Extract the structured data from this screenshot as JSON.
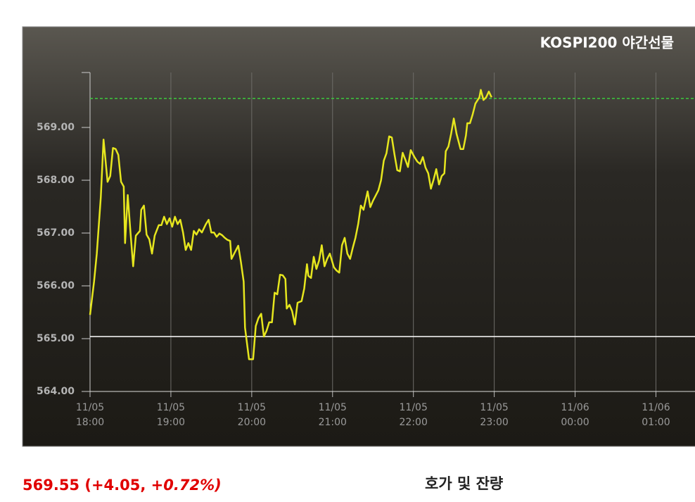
{
  "chart_data": {
    "type": "line",
    "title": "KOSPI200 야간선물",
    "x": [
      "11/05 18:00",
      "11/05 18:03",
      "11/05 18:05",
      "11/05 18:08",
      "11/05 18:10",
      "11/05 18:13",
      "11/05 18:15",
      "11/05 18:17",
      "11/05 18:19",
      "11/05 18:21",
      "11/05 18:23",
      "11/05 18:25",
      "11/05 18:26",
      "11/05 18:28",
      "11/05 18:30",
      "11/05 18:32",
      "11/05 18:34",
      "11/05 18:37",
      "11/05 18:38",
      "11/05 18:40",
      "11/05 18:42",
      "11/05 18:44",
      "11/05 18:46",
      "11/05 18:48",
      "11/05 18:51",
      "11/05 18:53",
      "11/05 18:55",
      "11/05 18:57",
      "11/05 18:59",
      "11/05 19:01",
      "11/05 19:03",
      "11/05 19:05",
      "11/05 19:07",
      "11/05 19:09",
      "11/05 19:11",
      "11/05 19:13",
      "11/05 19:15",
      "11/05 19:17",
      "11/05 19:19",
      "11/05 19:21",
      "11/05 19:23",
      "11/05 19:26",
      "11/05 19:28",
      "11/05 19:30",
      "11/05 19:32",
      "11/05 19:34",
      "11/05 19:36",
      "11/05 19:38",
      "11/05 19:40",
      "11/05 19:42",
      "11/05 19:44",
      "11/05 19:45",
      "11/05 19:47",
      "11/05 19:50",
      "11/05 19:52",
      "11/05 19:54",
      "11/05 19:55",
      "11/05 19:57",
      "11/05 19:58",
      "11/05 20:01",
      "11/05 20:03",
      "11/05 20:05",
      "11/05 20:07",
      "11/05 20:09",
      "11/05 20:11",
      "11/05 20:13",
      "11/05 20:15",
      "11/05 20:17",
      "11/05 20:19",
      "11/05 20:21",
      "11/05 20:23",
      "11/05 20:25",
      "11/05 20:26",
      "11/05 20:28",
      "11/05 20:30",
      "11/05 20:32",
      "11/05 20:34",
      "11/05 20:37",
      "11/05 20:39",
      "11/05 20:41",
      "11/05 20:42",
      "11/05 20:44",
      "11/05 20:46",
      "11/05 20:48",
      "11/05 20:50",
      "11/05 20:52",
      "11/05 20:54",
      "11/05 20:56",
      "11/05 20:58",
      "11/05 21:01",
      "11/05 21:03",
      "11/05 21:05",
      "11/05 21:07",
      "11/05 21:09",
      "11/05 21:11",
      "11/05 21:13",
      "11/05 21:15",
      "11/05 21:17",
      "11/05 21:19",
      "11/05 21:21",
      "11/05 21:23",
      "11/05 21:26",
      "11/05 21:28",
      "11/05 21:30",
      "11/05 21:32",
      "11/05 21:34",
      "11/05 21:36",
      "11/05 21:38",
      "11/05 21:40",
      "11/05 21:42",
      "11/05 21:44",
      "11/05 21:46",
      "11/05 21:48",
      "11/05 21:50",
      "11/05 21:52",
      "11/05 21:54",
      "11/05 21:56",
      "11/05 21:58",
      "11/05 22:01",
      "11/05 22:03",
      "11/05 22:05",
      "11/05 22:07",
      "11/05 22:09",
      "11/05 22:11",
      "11/05 22:13",
      "11/05 22:15",
      "11/05 22:17",
      "11/05 22:19",
      "11/05 22:21",
      "11/05 22:23",
      "11/05 22:24",
      "11/05 22:26",
      "11/05 22:28",
      "11/05 22:30",
      "11/05 22:32",
      "11/05 22:35",
      "11/05 22:37",
      "11/05 22:39",
      "11/05 22:40",
      "11/05 22:42",
      "11/05 22:44",
      "11/05 22:46",
      "11/05 22:49",
      "11/05 22:50",
      "11/05 22:52",
      "11/05 22:54",
      "11/05 22:56",
      "11/05 22:58"
    ],
    "series": [
      {
        "color": "#e6e61e",
        "values": [
          565.45,
          566.08,
          566.61,
          567.68,
          568.77,
          567.97,
          568.08,
          568.61,
          568.59,
          568.48,
          567.97,
          567.88,
          566.81,
          567.72,
          567.01,
          566.37,
          566.95,
          567.04,
          567.44,
          567.52,
          566.97,
          566.88,
          566.61,
          566.95,
          567.15,
          567.15,
          567.31,
          567.17,
          567.28,
          567.12,
          567.31,
          567.17,
          567.25,
          567.01,
          566.68,
          566.81,
          566.68,
          567.04,
          566.97,
          567.07,
          567.01,
          567.17,
          567.25,
          567.01,
          567.01,
          566.93,
          566.99,
          566.96,
          566.91,
          566.87,
          566.85,
          566.51,
          566.61,
          566.76,
          566.45,
          566.08,
          565.21,
          564.81,
          564.61,
          564.61,
          565.24,
          565.39,
          565.47,
          565.04,
          565.15,
          565.31,
          565.31,
          565.87,
          565.84,
          566.21,
          566.2,
          566.13,
          565.57,
          565.64,
          565.52,
          565.27,
          565.68,
          565.71,
          565.95,
          566.41,
          566.19,
          566.15,
          566.55,
          566.32,
          566.48,
          566.77,
          566.37,
          566.51,
          566.61,
          566.35,
          566.29,
          566.25,
          566.77,
          566.91,
          566.61,
          566.51,
          566.72,
          566.91,
          567.17,
          567.52,
          567.44,
          567.79,
          567.49,
          567.61,
          567.71,
          567.81,
          568.0,
          568.37,
          568.51,
          568.83,
          568.81,
          568.48,
          568.19,
          568.17,
          568.52,
          568.39,
          568.25,
          568.57,
          568.43,
          568.35,
          568.31,
          568.44,
          568.24,
          568.13,
          567.84,
          568.01,
          568.21,
          567.92,
          568.08,
          568.13,
          568.55,
          568.64,
          568.88,
          569.17,
          568.88,
          568.59,
          568.59,
          568.85,
          569.08,
          569.08,
          569.25,
          569.45,
          569.57,
          569.71,
          569.52,
          569.57,
          569.68,
          569.57
        ]
      }
    ],
    "xlim": [
      "11/05 18:00",
      "11/06 01:29"
    ],
    "xticks": [
      "11/05 18:00",
      "11/05 19:00",
      "11/05 20:00",
      "11/05 21:00",
      "11/05 22:00",
      "11/05 23:00",
      "11/06 00:00",
      "11/06 01:00"
    ],
    "ylim": [
      564,
      570.04
    ],
    "yticks": [
      {
        "value": 564,
        "label": "564.00"
      },
      {
        "value": 565,
        "label": "565.00"
      },
      {
        "value": 566,
        "label": "566.00"
      },
      {
        "value": 567,
        "label": "567.00"
      },
      {
        "value": 568,
        "label": "568.00"
      },
      {
        "value": 569,
        "label": "569.00"
      }
    ],
    "grid": true,
    "reference_lines": [
      {
        "value": 569.55,
        "color": "#3cc83c",
        "dashed": true
      },
      {
        "value": 565.04,
        "color": "#ffffff",
        "dashed": false
      }
    ]
  },
  "quote": [
    "569.55 (+4.05, ",
    "+0.72%)"
  ],
  "section_title": "호가 및 잔량"
}
